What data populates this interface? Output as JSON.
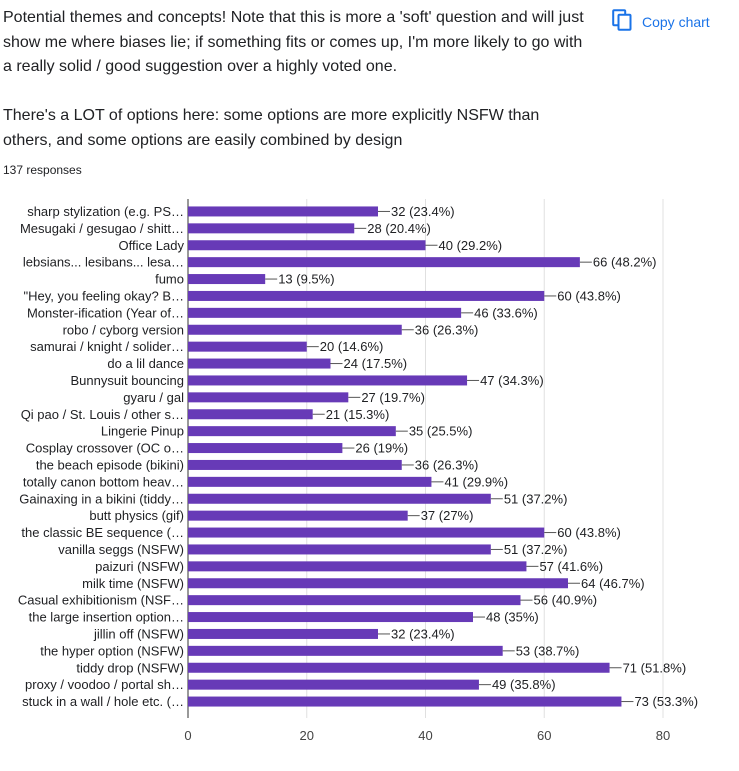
{
  "question": {
    "paragraph_1": "Potential themes and concepts! Note that this is more a 'soft' question and will just show me where biases lie; if something fits or comes up, I'm more likely to go with a really solid / good suggestion over a highly voted one.",
    "paragraph_2": "There's a LOT of options here: some options are more explicitly NSFW than others, and some options are easily combined by design",
    "responses": "137 responses"
  },
  "toolbar": {
    "copy_chart_label": "Copy chart",
    "copy_icon": "copy-icon"
  },
  "colors": {
    "bar": "#673ab7",
    "text": "#202124",
    "link": "#1a73e8",
    "grid": "#e0e0e0"
  },
  "chart_data": {
    "type": "bar",
    "orientation": "horizontal",
    "categories": [
      "sharp stylization (e.g. PS…",
      "Mesugaki / gesugao / shitt…",
      "Office Lady",
      "lebsians... lesibans... lesa…",
      "fumo",
      "\"Hey, you feeling okay? B…",
      "Monster-ification (Year of…",
      "robo / cyborg version",
      "samurai / knight / solider…",
      "do a lil dance",
      "Bunnysuit bouncing",
      "gyaru / gal",
      "Qi pao / St. Louis / other s…",
      "Lingerie Pinup",
      "Cosplay crossover (OC o…",
      "the beach episode (bikini)",
      "totally canon bottom heav…",
      "Gainaxing in a bikini (tiddy…",
      "butt physics (gif)",
      "the classic BE sequence (…",
      "vanilla seggs (NSFW)",
      "paizuri (NSFW)",
      "milk time (NSFW)",
      "Casual exhibitionism (NSF…",
      "the large insertion option…",
      "jillin off (NSFW)",
      "the hyper option (NSFW)",
      "tiddy drop (NSFW)",
      "proxy / voodoo / portal sh…",
      "stuck in a wall / hole etc. (…"
    ],
    "values": [
      32,
      28,
      40,
      66,
      13,
      60,
      46,
      36,
      20,
      24,
      47,
      27,
      21,
      35,
      26,
      36,
      41,
      51,
      37,
      60,
      51,
      57,
      64,
      56,
      48,
      32,
      53,
      71,
      49,
      73
    ],
    "data_labels": [
      "32 (23.4%)",
      "28 (20.4%)",
      "40 (29.2%)",
      "66 (48.2%)",
      "13 (9.5%)",
      "60 (43.8%)",
      "46 (33.6%)",
      "36 (26.3%)",
      "20 (14.6%)",
      "24 (17.5%)",
      "47 (34.3%)",
      "27 (19.7%)",
      "21 (15.3%)",
      "35 (25.5%)",
      "26 (19%)",
      "36 (26.3%)",
      "41 (29.9%)",
      "51 (37.2%)",
      "37 (27%)",
      "60 (43.8%)",
      "51 (37.2%)",
      "57 (41.6%)",
      "64 (46.7%)",
      "56 (40.9%)",
      "48 (35%)",
      "32 (23.4%)",
      "53 (38.7%)",
      "71 (51.8%)",
      "49 (35.8%)",
      "73 (53.3%)"
    ],
    "xlim": [
      0,
      80
    ],
    "xticks": [
      "0",
      "20",
      "40",
      "60",
      "80"
    ],
    "grid": true,
    "title": "",
    "xlabel": "",
    "ylabel": ""
  }
}
